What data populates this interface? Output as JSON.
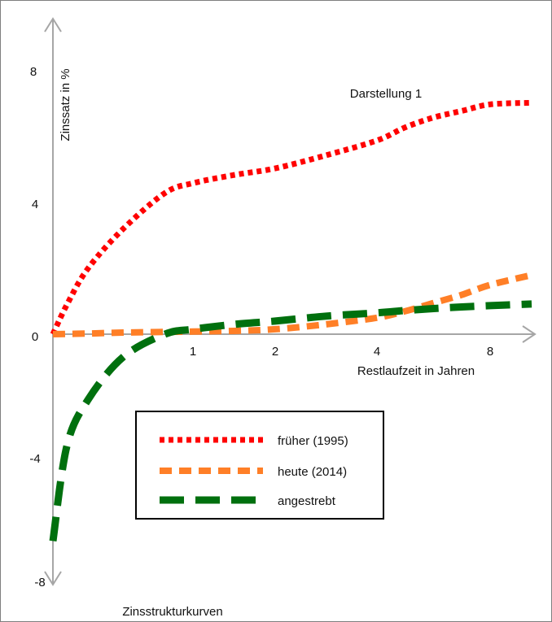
{
  "chart_data": {
    "type": "line",
    "title": "Darstellung 1",
    "caption": "Zinsstrukturkurven",
    "xlabel": "Restlaufzeit in Jahren",
    "ylabel": "Zinssatz in %",
    "ylim": [
      -8,
      9
    ],
    "x_tick_labels": [
      "1",
      "2",
      "4",
      "8"
    ],
    "y_tick_labels": [
      "8",
      "4",
      "0",
      "-4",
      "-8"
    ],
    "grid": false,
    "legend_position": "bottom-center",
    "series": [
      {
        "name": "früher (1995)",
        "color": "#ff0000",
        "style": "dotted",
        "x": [
          0.0,
          0.1,
          0.25,
          0.5,
          0.8,
          1.0,
          1.5,
          2.0,
          3.0,
          4.0,
          5.0,
          6.0,
          7.0,
          8.0,
          9.0
        ],
        "y": [
          0.0,
          0.9,
          2.0,
          3.2,
          4.3,
          4.6,
          4.85,
          5.05,
          5.45,
          5.9,
          6.3,
          6.6,
          6.8,
          7.0,
          7.05
        ]
      },
      {
        "name": "heute (2014)",
        "color": "#ff7f27",
        "style": "short-dash",
        "x": [
          0.0,
          0.25,
          0.5,
          1.0,
          1.5,
          2.0,
          3.0,
          4.0,
          5.0,
          6.0,
          7.0,
          8.0,
          9.0
        ],
        "y": [
          0.0,
          0.02,
          0.05,
          0.08,
          0.1,
          0.15,
          0.3,
          0.5,
          0.7,
          0.95,
          1.2,
          1.5,
          1.8
        ]
      },
      {
        "name": "angestrebt",
        "color": "#00700e",
        "style": "long-dash",
        "x": [
          0.0,
          0.1,
          0.25,
          0.5,
          0.8,
          1.0,
          1.5,
          2.0,
          3.0,
          4.0,
          5.0,
          6.0,
          7.0,
          8.0,
          9.0
        ],
        "y": [
          -6.3,
          -3.4,
          -2.0,
          -0.7,
          0.0,
          0.15,
          0.3,
          0.4,
          0.55,
          0.65,
          0.72,
          0.78,
          0.83,
          0.87,
          0.92
        ]
      }
    ]
  }
}
